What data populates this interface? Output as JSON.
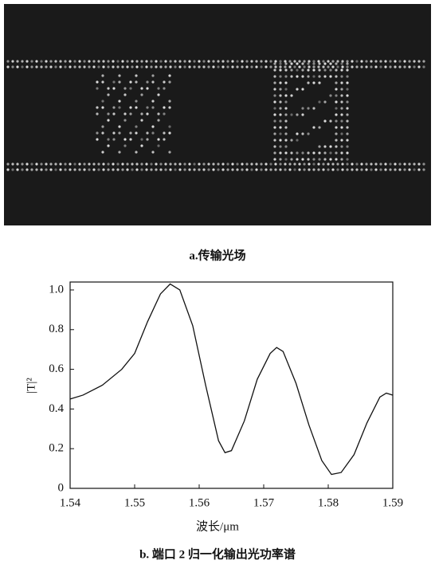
{
  "panel_a": {
    "caption": "a.传输光场"
  },
  "chart_data": {
    "type": "line",
    "title": "b. 端口 2 归一化输出光功率谱",
    "xlabel": "波长/μm",
    "ylabel": "|T|²",
    "xlim": [
      1.54,
      1.59
    ],
    "xticks": [
      1.54,
      1.55,
      1.56,
      1.57,
      1.58,
      1.59
    ],
    "ylim": [
      0,
      1.04
    ],
    "yticks": [
      0,
      0.2,
      0.4,
      0.6,
      0.8,
      {
        "value": 1,
        "label": "1.0"
      }
    ],
    "series": [
      {
        "color": "#111111",
        "x": [
          1.54,
          1.542,
          1.545,
          1.548,
          1.55,
          1.552,
          1.554,
          1.5555,
          1.557,
          1.559,
          1.561,
          1.563,
          1.564,
          1.565,
          1.567,
          1.569,
          1.571,
          1.572,
          1.573,
          1.575,
          1.577,
          1.579,
          1.5805,
          1.582,
          1.584,
          1.586,
          1.588,
          1.589,
          1.59
        ],
        "values": [
          0.45,
          0.47,
          0.52,
          0.6,
          0.68,
          0.84,
          0.98,
          1.03,
          1.0,
          0.82,
          0.52,
          0.24,
          0.18,
          0.19,
          0.34,
          0.55,
          0.68,
          0.71,
          0.69,
          0.53,
          0.32,
          0.14,
          0.07,
          0.08,
          0.17,
          0.33,
          0.46,
          0.48,
          0.47
        ]
      }
    ]
  }
}
